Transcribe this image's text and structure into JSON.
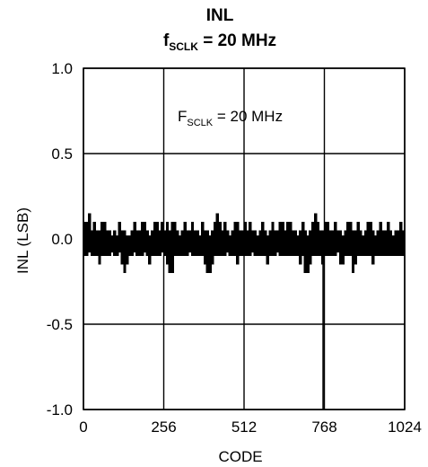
{
  "chart_data": {
    "type": "line",
    "title": {
      "line1": "INL",
      "line2_main": "f",
      "line2_sub": "SCLK",
      "line2_rest": " = 20 MHz"
    },
    "annotation": {
      "main": "F",
      "sub": "SCLK",
      "rest": " = 20 MHz"
    },
    "xlabel": "CODE",
    "ylabel": "INL (LSB)",
    "xlim": [
      0,
      1024
    ],
    "ylim": [
      -1.0,
      1.0
    ],
    "x_ticks": [
      0,
      256,
      512,
      768,
      1024
    ],
    "x_tick_labels": [
      "0",
      "256",
      "512",
      "768",
      "1024"
    ],
    "y_ticks": [
      1.0,
      0.5,
      0.0,
      -0.5,
      -1.0
    ],
    "y_tick_labels": [
      "1.0",
      "0.5",
      "0.0",
      "-0.5",
      "-1.0"
    ],
    "grid": true,
    "series": [
      {
        "color": "#000000",
        "x": [
          0,
          8,
          16,
          24,
          32,
          40,
          48,
          56,
          64,
          72,
          80,
          88,
          96,
          104,
          112,
          120,
          128,
          136,
          144,
          152,
          160,
          168,
          176,
          184,
          192,
          200,
          208,
          216,
          224,
          232,
          240,
          248,
          256,
          264,
          272,
          280,
          288,
          296,
          304,
          312,
          320,
          328,
          336,
          344,
          352,
          360,
          368,
          376,
          384,
          392,
          400,
          408,
          416,
          424,
          432,
          440,
          448,
          456,
          464,
          472,
          480,
          488,
          496,
          504,
          512,
          520,
          528,
          536,
          544,
          552,
          560,
          568,
          576,
          584,
          592,
          600,
          608,
          616,
          624,
          632,
          640,
          648,
          656,
          664,
          672,
          680,
          688,
          696,
          704,
          712,
          720,
          728,
          736,
          744,
          752,
          760,
          768,
          776,
          784,
          792,
          800,
          808,
          816,
          824,
          832,
          840,
          848,
          856,
          864,
          872,
          880,
          888,
          896,
          904,
          912,
          920,
          928,
          936,
          944,
          952,
          960,
          968,
          976,
          984,
          992,
          1000,
          1008,
          1016,
          1024
        ],
        "y_high": [
          0.1,
          0.1,
          0.15,
          0.05,
          0.1,
          0.05,
          0.05,
          0.1,
          0.1,
          0.05,
          0.05,
          0.0,
          0.05,
          0.0,
          0.1,
          0.05,
          0.05,
          0.0,
          0.0,
          0.05,
          0.1,
          0.05,
          0.05,
          0.1,
          0.1,
          0.05,
          0.0,
          0.05,
          0.1,
          0.1,
          0.05,
          0.1,
          0.05,
          0.1,
          0.05,
          0.1,
          0.1,
          0.05,
          0.0,
          0.05,
          0.1,
          0.05,
          0.05,
          0.1,
          0.05,
          0.05,
          0.0,
          0.1,
          0.05,
          0.05,
          0.0,
          0.05,
          0.1,
          0.15,
          0.1,
          0.05,
          0.1,
          0.05,
          0.0,
          0.05,
          0.1,
          0.1,
          0.05,
          0.05,
          0.1,
          0.05,
          0.1,
          0.05,
          0.05,
          0.0,
          0.05,
          0.1,
          0.05,
          0.0,
          0.05,
          0.1,
          0.05,
          0.05,
          0.1,
          0.1,
          0.05,
          0.1,
          0.1,
          0.05,
          0.05,
          0.0,
          0.05,
          0.1,
          0.05,
          0.0,
          0.05,
          0.1,
          0.15,
          0.1,
          0.05,
          0.05,
          0.1,
          0.1,
          0.05,
          0.05,
          0.1,
          0.05,
          0.05,
          0.0,
          0.05,
          0.1,
          0.1,
          0.05,
          0.05,
          0.1,
          0.05,
          0.0,
          0.05,
          0.1,
          0.1,
          0.05,
          0.0,
          0.05,
          0.1,
          0.05,
          0.05,
          0.1,
          0.05,
          0.0,
          0.05,
          0.05,
          0.1,
          0.05,
          0.05
        ],
        "y_low": [
          -0.1,
          -0.1,
          -0.05,
          -0.1,
          -0.1,
          -0.1,
          -0.15,
          -0.1,
          -0.1,
          -0.1,
          -0.1,
          -0.05,
          -0.1,
          -0.1,
          -0.05,
          -0.15,
          -0.2,
          -0.15,
          -0.1,
          -0.1,
          -0.05,
          -0.1,
          -0.1,
          -0.1,
          -0.05,
          -0.1,
          -0.15,
          -0.1,
          -0.1,
          -0.1,
          -0.1,
          -0.05,
          -0.1,
          -0.15,
          -0.2,
          -0.2,
          -0.1,
          -0.1,
          -0.1,
          -0.1,
          -0.1,
          -0.1,
          -0.05,
          -0.1,
          -0.1,
          -0.1,
          -0.1,
          -0.1,
          -0.15,
          -0.2,
          -0.2,
          -0.15,
          -0.1,
          -0.1,
          -0.1,
          -0.1,
          -0.1,
          -0.05,
          -0.1,
          -0.1,
          -0.1,
          -0.15,
          -0.1,
          -0.1,
          -0.1,
          -0.1,
          -0.1,
          -0.05,
          -0.1,
          -0.1,
          -0.1,
          -0.1,
          -0.1,
          -0.15,
          -0.1,
          -0.1,
          -0.1,
          -0.05,
          -0.1,
          -0.1,
          -0.1,
          -0.1,
          -0.1,
          -0.1,
          -0.1,
          -0.1,
          -0.15,
          -0.1,
          -0.2,
          -0.2,
          -0.15,
          -0.1,
          -0.1,
          -0.1,
          -0.1,
          -0.15,
          -0.1,
          -0.1,
          -0.1,
          -0.1,
          -0.1,
          -0.05,
          -0.15,
          -0.15,
          -0.1,
          -0.1,
          -0.1,
          -0.2,
          -0.15,
          -0.1,
          -0.1,
          -0.1,
          -0.1,
          -0.1,
          -0.1,
          -0.15,
          -0.1,
          -0.1,
          -0.1,
          -0.1,
          -0.1,
          -0.1,
          -0.1,
          -0.1,
          -0.1,
          -0.1,
          -0.1,
          -0.1,
          -0.1
        ]
      }
    ],
    "spike": {
      "x": 764,
      "y_min": -1.0,
      "y_max": -0.1
    }
  }
}
